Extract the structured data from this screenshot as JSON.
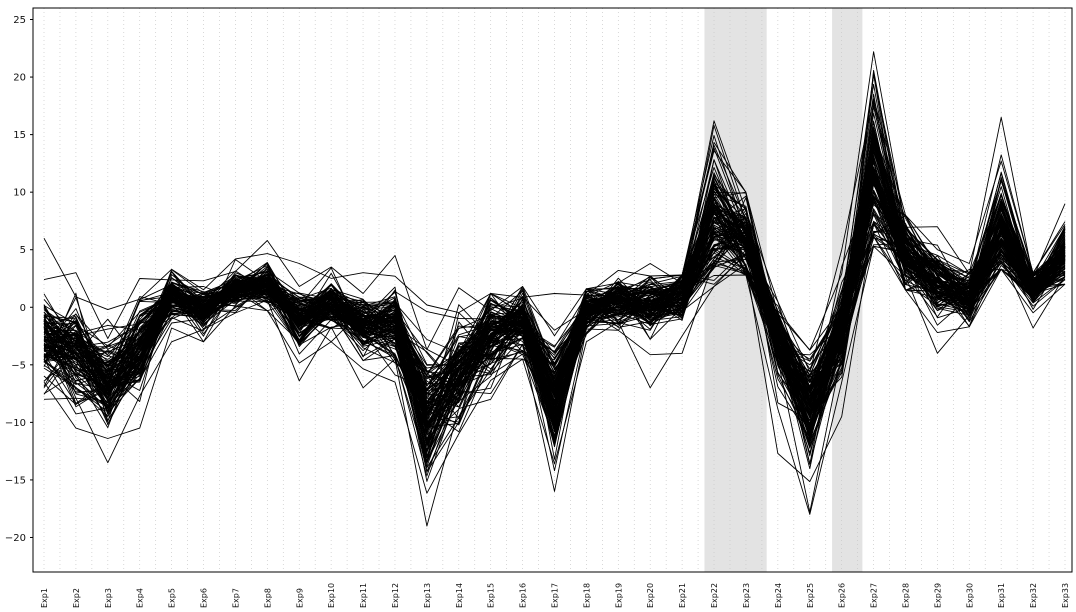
{
  "chart_data": {
    "type": "line",
    "title": "",
    "xlabel": "",
    "ylabel": "",
    "categories": [
      "Exp1",
      "Exp2",
      "Exp3",
      "Exp4",
      "Exp5",
      "Exp6",
      "Exp7",
      "Exp8",
      "Exp9",
      "Exp10",
      "Exp11",
      "Exp12",
      "Exp13",
      "Exp14",
      "Exp15",
      "Exp16",
      "Exp17",
      "Exp18",
      "Exp19",
      "Exp20",
      "Exp21",
      "Exp22",
      "Exp23",
      "Exp24",
      "Exp25",
      "Exp26",
      "Exp27",
      "Exp28",
      "Exp29",
      "Exp30",
      "Exp31",
      "Exp32",
      "Exp33"
    ],
    "ylim": [
      -23,
      26
    ],
    "yticks": [
      -20,
      -15,
      -10,
      -5,
      0,
      5,
      10,
      15,
      20,
      25
    ],
    "grid": "vertical-dotted",
    "highlight_bands": [
      {
        "from": "Exp22",
        "to": "Exp23"
      },
      {
        "from": "Exp26",
        "to": "Exp26"
      }
    ],
    "colors": {
      "line": "#000000",
      "band": "#e3e3e3",
      "grid": "#c8c8c8"
    },
    "series_count": 130,
    "center_profile": [
      -3,
      -4,
      -6.5,
      -3.5,
      1,
      -0.3,
      1.5,
      2,
      -1.2,
      0.2,
      -1.5,
      -1.5,
      -9.5,
      -5.5,
      -2.5,
      -1.3,
      -8,
      -0.2,
      0.5,
      0.2,
      1,
      7.5,
      6,
      -3,
      -8.5,
      -2,
      12,
      4.5,
      2,
      0.8,
      7,
      1.5,
      4.5
    ],
    "spread_profile": [
      2.5,
      2.5,
      2.2,
      2,
      1.2,
      1.2,
      1,
      1,
      1.5,
      1.3,
      1.5,
      1.7,
      3,
      2.5,
      2,
      1.7,
      2.5,
      1.2,
      1.2,
      1.5,
      1.5,
      3.5,
      2.5,
      2,
      2.5,
      2.5,
      4,
      2.2,
      1.8,
      1.3,
      3,
      1,
      1.5
    ],
    "upper_envelope": [
      6,
      3,
      -0.2,
      2.5,
      3.3,
      2.3,
      4.2,
      5.8,
      3.8,
      3.5,
      3,
      4.5,
      0.2,
      1.7,
      1.2,
      1.8,
      1.2,
      1.6,
      3.2,
      3.8,
      2.8,
      16.2,
      10,
      0.5,
      -3.7,
      5,
      22.2,
      8,
      7,
      3.8,
      16.5,
      3,
      9
    ],
    "lower_envelope": [
      -8,
      -10.5,
      -13.5,
      -10.5,
      -3,
      -3,
      -0.5,
      -0.3,
      -6.4,
      -3,
      -7,
      -6.5,
      -19,
      -11,
      -8,
      -4.5,
      -16,
      -3,
      -2,
      -7,
      -4,
      1.8,
      2.8,
      -12.7,
      -18,
      -9.5,
      5.3,
      1.5,
      -4,
      -1.7,
      3.3,
      -1.8,
      2
    ]
  }
}
